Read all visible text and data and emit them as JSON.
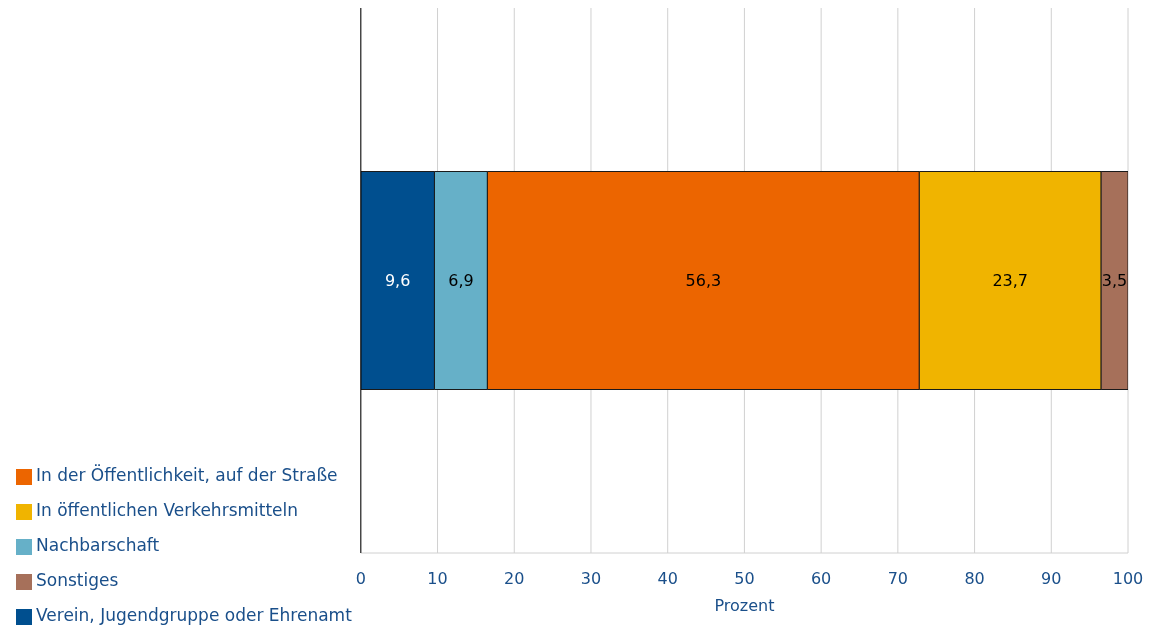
{
  "chart_data": {
    "type": "bar",
    "orientation": "horizontal",
    "stacked": true,
    "categories": [
      null
    ],
    "xlabel": "Prozent",
    "xlim": [
      0,
      100
    ],
    "xticks": [
      0,
      10,
      20,
      30,
      40,
      50,
      60,
      70,
      80,
      90,
      100
    ],
    "grid": "x",
    "legend": "bottom left",
    "series": [
      {
        "name": "Verein, Jugendgruppe oder Ehrenamt",
        "color": "#004f8f",
        "values": [
          9.6
        ],
        "value_labels": [
          "9,6"
        ]
      },
      {
        "name": "Nachbarschaft",
        "color": "#66b0c8",
        "values": [
          6.9
        ],
        "value_labels": [
          "6,9"
        ]
      },
      {
        "name": "In der Öffentlichkeit, auf der Straße",
        "color": "#ec6500",
        "values": [
          56.3
        ],
        "value_labels": [
          "56,3"
        ]
      },
      {
        "name": "In öffentlichen Verkehrsmitteln",
        "color": "#f0b400",
        "values": [
          23.7
        ],
        "value_labels": [
          "23,7"
        ]
      },
      {
        "name": "Sonstiges",
        "color": "#a6705a",
        "values": [
          3.5
        ],
        "value_labels": [
          "3,5"
        ]
      }
    ]
  }
}
